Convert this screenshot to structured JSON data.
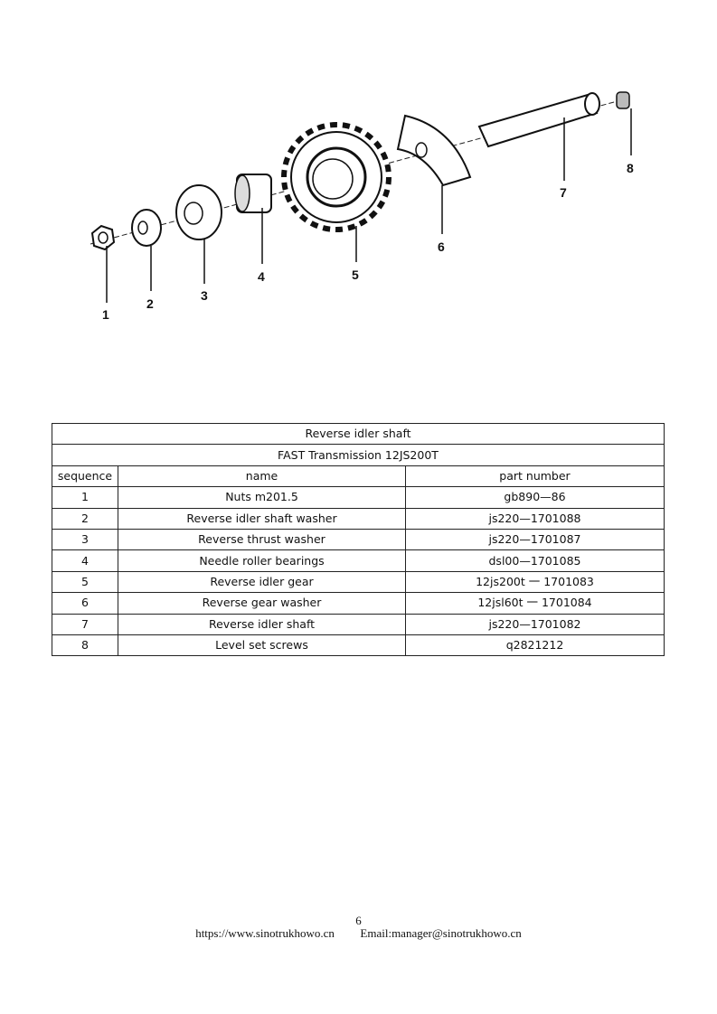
{
  "diagram": {
    "callouts": [
      "1",
      "2",
      "3",
      "4",
      "5",
      "6",
      "7",
      "8"
    ]
  },
  "table": {
    "title": "Reverse idler shaft",
    "subtitle": "FAST Transmission 12JS200T",
    "headers": [
      "sequence",
      "name",
      "part number"
    ],
    "rows": [
      [
        "1",
        "Nuts m201.5",
        "gb890—86"
      ],
      [
        "2",
        "Reverse idler shaft washer",
        "js220—1701088"
      ],
      [
        "3",
        "Reverse thrust washer",
        "js220—1701087"
      ],
      [
        "4",
        "Needle roller bearings",
        "dsl00—1701085"
      ],
      [
        "5",
        "Reverse idler gear",
        "12js200t 一 1701083"
      ],
      [
        "6",
        "Reverse gear washer",
        "12jsl60t 一 1701084"
      ],
      [
        "7",
        "Reverse idler shaft",
        "js220—1701082"
      ],
      [
        "8",
        "Level set screws",
        "q2821212"
      ]
    ]
  },
  "footer": {
    "page_number": "6",
    "website": "https://www.sinotrukhowo.cn",
    "email": "Email:manager@sinotrukhowo.cn"
  }
}
